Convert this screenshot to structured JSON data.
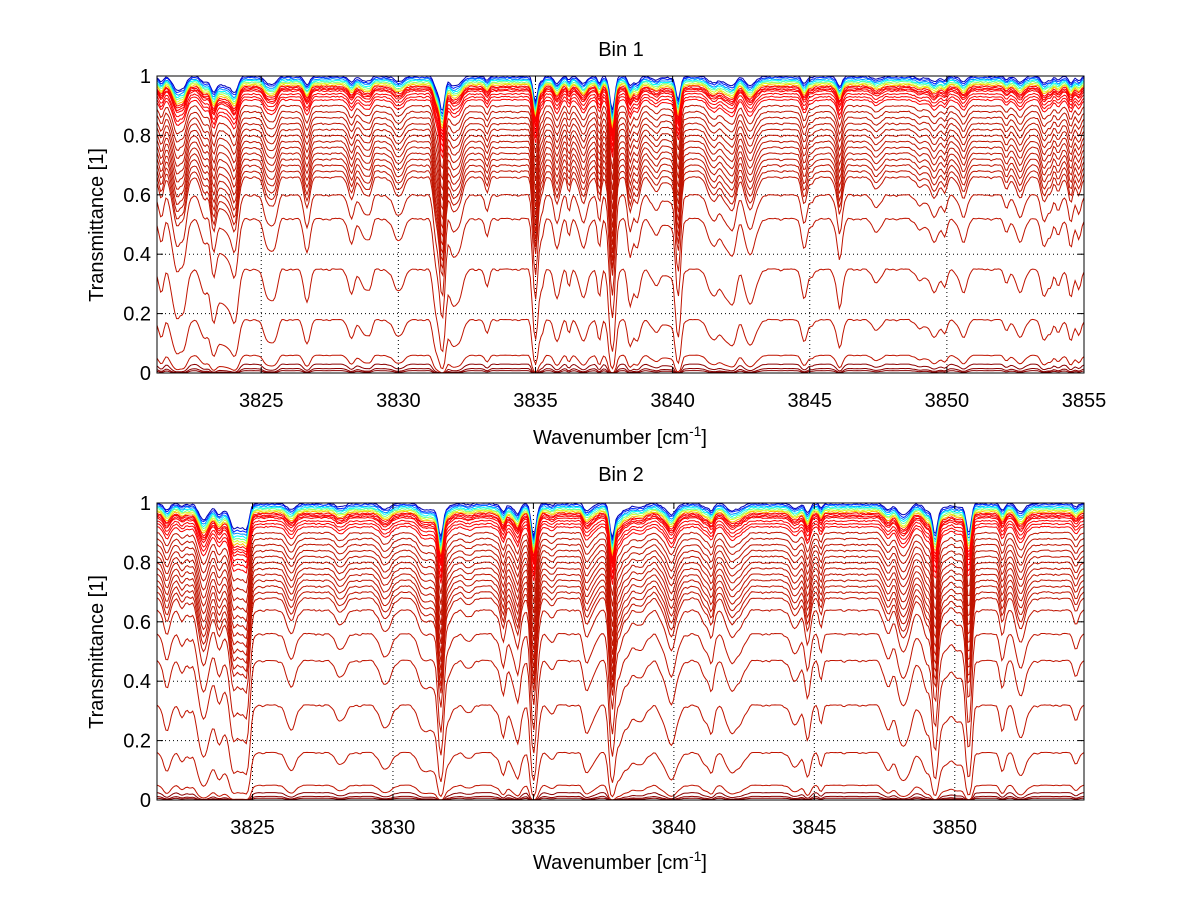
{
  "chart_data": [
    {
      "type": "line",
      "title": "Bin 1",
      "xlabel": "Wavenumber [cm",
      "xlabel_sup": "-1",
      "xlabel_suffix": "]",
      "ylabel": "Transmittance [1]",
      "xlim": [
        3821.2,
        3855
      ],
      "ylim": [
        0,
        1
      ],
      "xticks": [
        3825,
        3830,
        3835,
        3840,
        3845,
        3850,
        3855
      ],
      "yticks": [
        0,
        0.2,
        0.4,
        0.6,
        0.8,
        1
      ],
      "grid": true,
      "grid_style": "dotted",
      "legend": "none",
      "colormap": "jet",
      "series_description": "family of transmittance spectra ranging from near 1 (blue) to near 0 (dark red)",
      "absorption_lines": [
        {
          "x": 3831.6,
          "min_y": 0.4
        },
        {
          "x": 3837.8,
          "min_y": 0.38
        },
        {
          "x": 3835.0,
          "min_y": 0.5
        },
        {
          "x": 3840.2,
          "min_y": 0.52
        }
      ],
      "series_levels": [
        1.0,
        0.995,
        0.99,
        0.985,
        0.98,
        0.975,
        0.97,
        0.965,
        0.96,
        0.955,
        0.95,
        0.94,
        0.93,
        0.92,
        0.9,
        0.88,
        0.86,
        0.84,
        0.82,
        0.8,
        0.78,
        0.76,
        0.74,
        0.72,
        0.7,
        0.68,
        0.66,
        0.6,
        0.52,
        0.35,
        0.18,
        0.06,
        0.03,
        0.015,
        0.008
      ]
    },
    {
      "type": "line",
      "title": "Bin 2",
      "xlabel": "Wavenumber [cm",
      "xlabel_sup": "-1",
      "xlabel_suffix": "]",
      "ylabel": "Transmittance [1]",
      "xlim": [
        3821.6,
        3854.6
      ],
      "ylim": [
        0,
        1
      ],
      "xticks": [
        3825,
        3830,
        3835,
        3840,
        3845,
        3850
      ],
      "yticks": [
        0,
        0.2,
        0.4,
        0.6,
        0.8,
        1
      ],
      "grid": true,
      "grid_style": "dotted",
      "legend": "none",
      "colormap": "jet",
      "series_description": "family of transmittance spectra ranging from near 1 (blue) to near 0 (dark red)",
      "absorption_lines": [
        {
          "x": 3824.8,
          "min_y": 0.66
        },
        {
          "x": 3831.7,
          "min_y": 0.38
        },
        {
          "x": 3835.0,
          "min_y": 0.4
        },
        {
          "x": 3837.8,
          "min_y": 0.36
        },
        {
          "x": 3849.3,
          "min_y": 0.42
        },
        {
          "x": 3850.5,
          "min_y": 0.5
        }
      ],
      "series_levels": [
        1.0,
        0.995,
        0.99,
        0.985,
        0.98,
        0.975,
        0.97,
        0.965,
        0.96,
        0.955,
        0.95,
        0.94,
        0.93,
        0.92,
        0.9,
        0.88,
        0.86,
        0.84,
        0.82,
        0.8,
        0.78,
        0.76,
        0.74,
        0.72,
        0.7,
        0.68,
        0.64,
        0.56,
        0.47,
        0.32,
        0.16,
        0.05,
        0.025,
        0.012,
        0.006
      ]
    }
  ]
}
